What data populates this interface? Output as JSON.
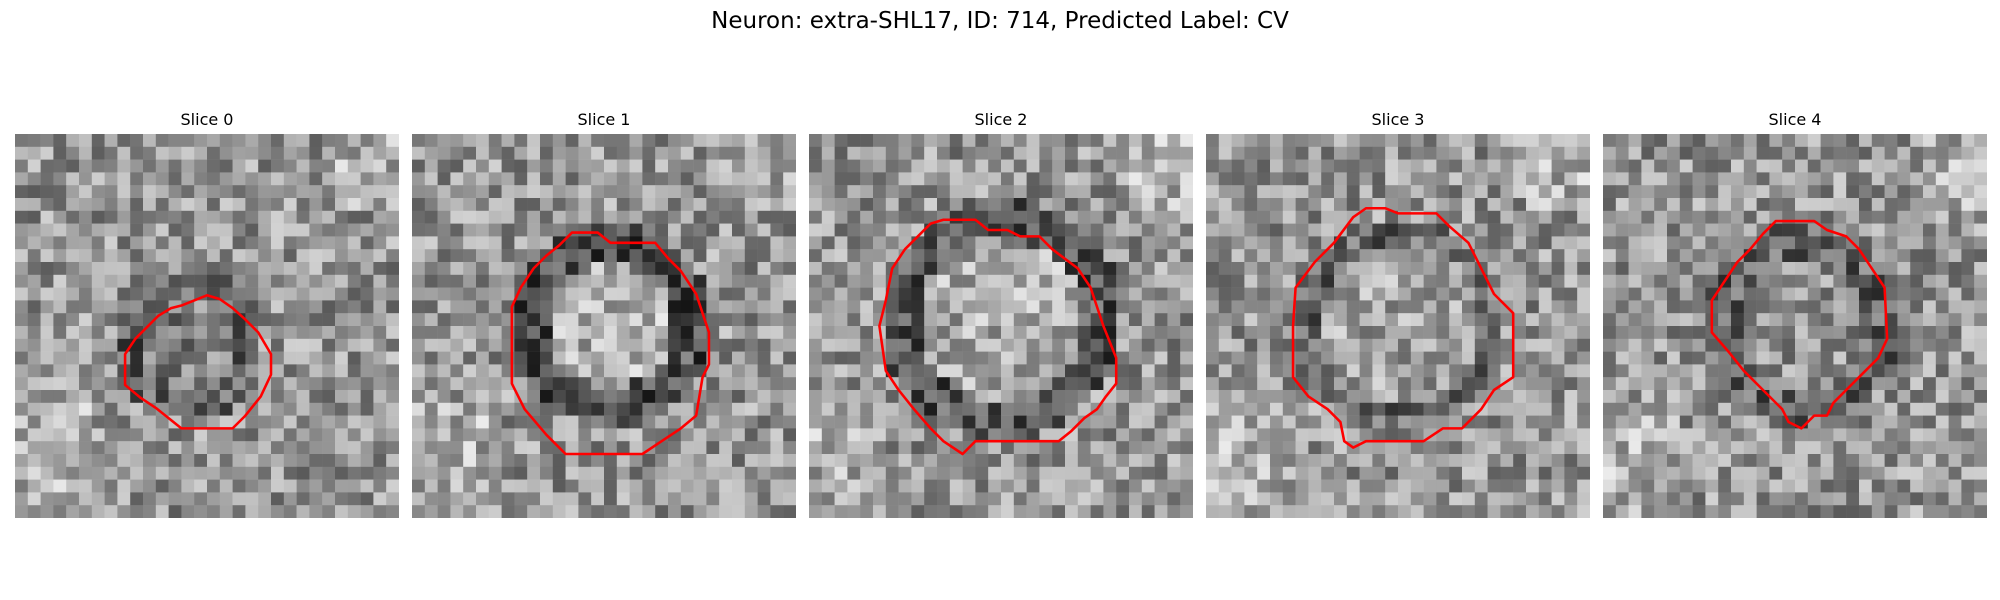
{
  "figure": {
    "title": "Neuron: extra-SHL17, ID: 714, Predicted Label: CV"
  },
  "panels": [
    {
      "label": "Slice 0"
    },
    {
      "label": "Slice 1"
    },
    {
      "label": "Slice 2"
    },
    {
      "label": "Slice 3"
    },
    {
      "label": "Slice 4"
    }
  ],
  "colors": {
    "contour": "#ff0000",
    "background": "#ffffff"
  }
}
